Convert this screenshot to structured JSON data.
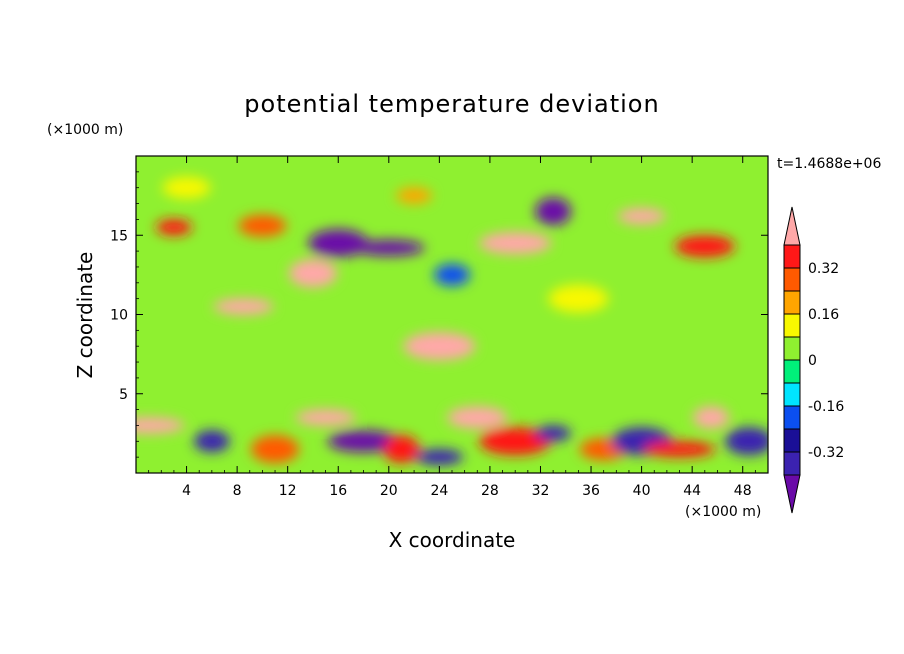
{
  "chart_data": {
    "type": "heatmap",
    "title": "potential temperature deviation",
    "xlabel": "X coordinate",
    "ylabel": "Z coordinate",
    "x_unit_label": "(×1000 m)",
    "y_unit_label": "(×1000 m)",
    "time_label": "t=1.4688e+06",
    "xlim": [
      0,
      50
    ],
    "ylim": [
      0,
      20
    ],
    "x_ticks": [
      4,
      8,
      12,
      16,
      20,
      24,
      28,
      32,
      36,
      40,
      44,
      48
    ],
    "y_ticks": [
      5,
      10,
      15
    ],
    "colorbar": {
      "levels": [
        -0.4,
        -0.32,
        -0.24,
        -0.16,
        -0.08,
        0,
        0.08,
        0.16,
        0.24,
        0.32,
        0.4
      ],
      "labels": [
        "0.32",
        "0.16",
        "0",
        "-0.16",
        "-0.32"
      ],
      "label_values": [
        0.32,
        0.16,
        0,
        -0.16,
        -0.32
      ],
      "colors": [
        "#6a0aa8",
        "#3b22b0",
        "#1a0f96",
        "#0b4ff0",
        "#00e5ff",
        "#00f07a",
        "#8ff030",
        "#f8f800",
        "#ffa500",
        "#ff5a00",
        "#ff1818",
        "#ffa8a8"
      ],
      "extend": "both"
    },
    "features": [
      {
        "x": 3,
        "z": 15.5,
        "v": 0.38
      },
      {
        "x": 10,
        "z": 15.6,
        "v": 0.25
      },
      {
        "x": 16,
        "z": 14.5,
        "v": -0.45
      },
      {
        "x": 20,
        "z": 14.2,
        "v": -0.45
      },
      {
        "x": 25,
        "z": 12.5,
        "v": -0.24
      },
      {
        "x": 14,
        "z": 12.6,
        "v": 0.42
      },
      {
        "x": 8.5,
        "z": 10.5,
        "v": 0.42
      },
      {
        "x": 30,
        "z": 14.5,
        "v": 0.42
      },
      {
        "x": 33,
        "z": 16.5,
        "v": -0.45
      },
      {
        "x": 40,
        "z": 16.2,
        "v": 0.4
      },
      {
        "x": 45,
        "z": 14.3,
        "v": 0.38
      },
      {
        "x": 24,
        "z": 8,
        "v": 0.42
      },
      {
        "x": 22,
        "z": 17.5,
        "v": 0.2
      },
      {
        "x": 4,
        "z": 18,
        "v": 0.08
      },
      {
        "x": 35,
        "z": 11,
        "v": 0.08
      },
      {
        "x": 1,
        "z": 3,
        "v": 0.4
      },
      {
        "x": 6,
        "z": 2,
        "v": -0.4
      },
      {
        "x": 11,
        "z": 1.5,
        "v": 0.3
      },
      {
        "x": 15,
        "z": 3.5,
        "v": 0.42
      },
      {
        "x": 18,
        "z": 2,
        "v": -0.45
      },
      {
        "x": 21,
        "z": 1.5,
        "v": 0.35
      },
      {
        "x": 24,
        "z": 1,
        "v": -0.4
      },
      {
        "x": 27,
        "z": 3.5,
        "v": 0.42
      },
      {
        "x": 30,
        "z": 2,
        "v": 0.35
      },
      {
        "x": 33,
        "z": 2.5,
        "v": -0.4
      },
      {
        "x": 37,
        "z": 1.5,
        "v": 0.3
      },
      {
        "x": 40,
        "z": 2,
        "v": -0.4
      },
      {
        "x": 43,
        "z": 1.5,
        "v": 0.35
      },
      {
        "x": 45.5,
        "z": 3.5,
        "v": 0.42
      },
      {
        "x": 48.5,
        "z": 2,
        "v": -0.4
      }
    ]
  }
}
